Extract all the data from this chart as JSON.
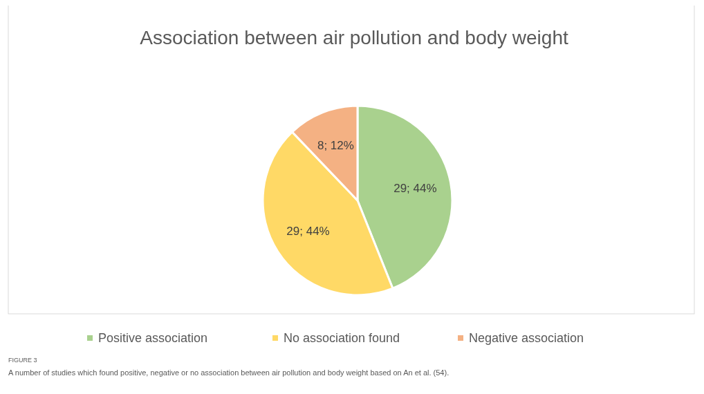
{
  "chart_data": {
    "type": "pie",
    "title": "Association between air pollution and body weight",
    "categories": [
      "Positive association",
      "No association found",
      "Negative association"
    ],
    "values": [
      29,
      29,
      8
    ],
    "colors": [
      "#a9d18e",
      "#ffd966",
      "#f4b183"
    ],
    "value_labels": [
      "29; 44%",
      "29; 44%",
      "8; 12%"
    ],
    "legend": "bottom",
    "annotations": [
      "FIGURE 3",
      "A number of studies which found positive, negative or no association between air pollution and body weight based on An et al. (54)."
    ]
  }
}
